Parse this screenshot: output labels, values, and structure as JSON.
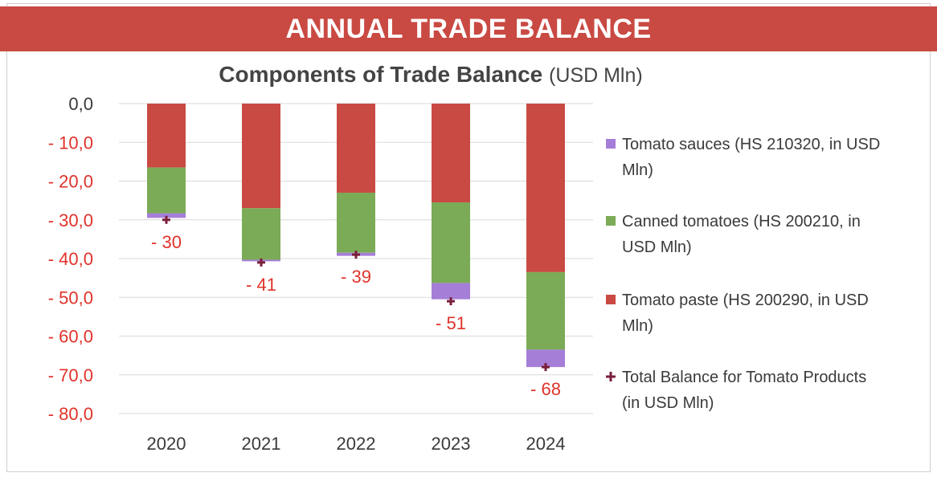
{
  "banner": {
    "title": "ANNUAL TRADE BALANCE"
  },
  "chart_data": {
    "type": "bar",
    "stacked": true,
    "title": "Components of Trade Balance",
    "title_unit": "(USD Mln)",
    "categories": [
      "2020",
      "2021",
      "2022",
      "2023",
      "2024"
    ],
    "ylim": [
      -80,
      0
    ],
    "yticks": [
      0,
      -10,
      -20,
      -30,
      -40,
      -50,
      -60,
      -70,
      -80
    ],
    "ytick_labels": [
      "0,0",
      "- 10,0",
      "- 20,0",
      "- 30,0",
      "- 40,0",
      "- 50,0",
      "- 60,0",
      "- 70,0",
      "- 80,0"
    ],
    "grid": true,
    "legend_position": "right",
    "series": [
      {
        "name": "Tomato paste (HS 200290, in USD Mln)",
        "color": "#c94a43",
        "values": [
          -16.5,
          -27.0,
          -23.0,
          -25.5,
          -43.5
        ]
      },
      {
        "name": "Canned tomatoes (HS 200210, in USD Mln)",
        "color": "#7bab56",
        "values": [
          -11.8,
          -13.3,
          -15.5,
          -20.8,
          -20.0
        ]
      },
      {
        "name": "Tomato sauces (HS 210320, in USD Mln)",
        "color": "#a57ed8",
        "values": [
          -1.2,
          -0.4,
          -0.8,
          -4.2,
          -4.5
        ]
      }
    ],
    "total": {
      "name": "Total Balance for Tomato Products (in USD Mln)",
      "color": "#7a1e3a",
      "values": [
        -30,
        -41,
        -39,
        -51,
        -68
      ],
      "labels": [
        "- 30",
        "- 41",
        "- 39",
        "- 51",
        "- 68"
      ]
    },
    "legend_order": [
      2,
      1,
      0,
      "total"
    ],
    "legend_entries": [
      [
        "Tomato sauces (HS 210320, in USD",
        "Mln)"
      ],
      [
        "Canned tomatoes (HS 200210, in",
        "USD Mln)"
      ],
      [
        "Tomato paste (HS 200290, in USD",
        "Mln)"
      ],
      [
        "Total Balance for Tomato Products",
        "(in USD Mln)"
      ]
    ],
    "label_color": "#e0332b",
    "axis_text_color": "#3a3a3a"
  }
}
